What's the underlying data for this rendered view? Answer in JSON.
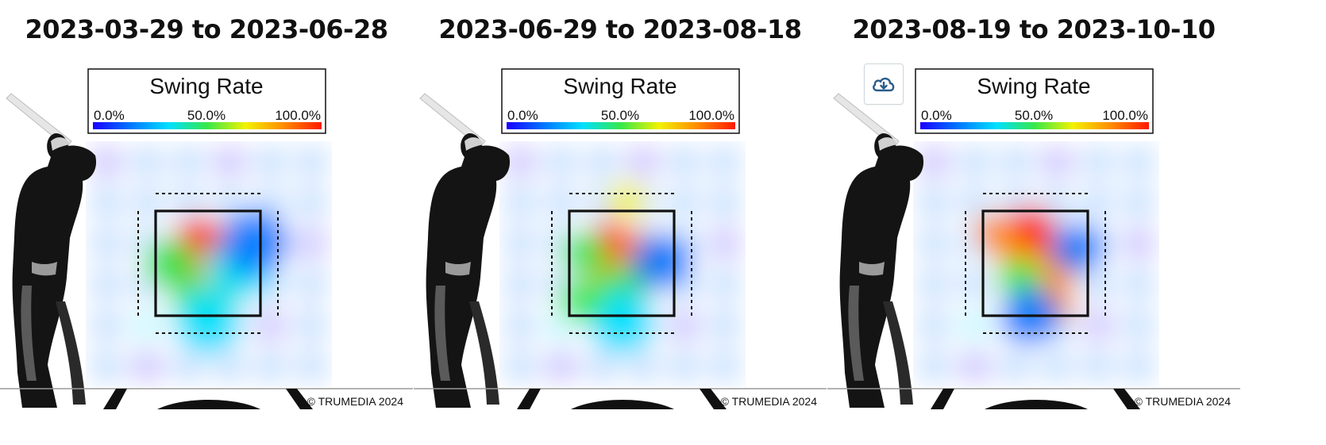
{
  "panels": [
    {
      "title": "2023-03-29 to 2023-06-28"
    },
    {
      "title": "2023-06-29 to 2023-08-18"
    },
    {
      "title": "2023-08-19 to 2023-10-10"
    }
  ],
  "legend": {
    "title": "Swing Rate",
    "tick_min": "0.0%",
    "tick_mid": "50.0%",
    "tick_max": "100.0%",
    "colorscale": [
      "#1a00ff",
      "#0078ff",
      "#00e0ff",
      "#37e84a",
      "#f2f200",
      "#ff8c00",
      "#ff1a00"
    ]
  },
  "copyright": "© TRUMEDIA 2024",
  "download_icon": "cloud-download-icon",
  "chart_data": [
    {
      "type": "heatmap",
      "title": "2023-03-29 to 2023-06-28",
      "metric": "Swing Rate",
      "scale": [
        0,
        100
      ],
      "blobs": [
        {
          "u": 0.5,
          "v": 0.5,
          "s": 0.22,
          "rate": 95
        },
        {
          "u": 0.42,
          "v": 0.3,
          "s": 0.14,
          "rate": 92
        },
        {
          "u": 0.35,
          "v": 0.6,
          "s": 0.12,
          "rate": 97
        },
        {
          "u": 0.62,
          "v": 0.48,
          "s": 0.12,
          "rate": 80
        },
        {
          "u": 0.58,
          "v": 0.78,
          "s": 0.14,
          "rate": 60
        },
        {
          "u": 0.35,
          "v": 0.85,
          "s": 0.12,
          "rate": 55
        },
        {
          "u": 0.8,
          "v": 0.55,
          "s": 0.18,
          "rate": 25
        },
        {
          "u": 0.15,
          "v": 0.5,
          "s": 0.14,
          "rate": 50
        },
        {
          "u": 0.95,
          "v": 0.3,
          "s": 0.18,
          "rate": 12
        },
        {
          "u": 0.5,
          "v": 1.05,
          "s": 0.18,
          "rate": 28
        }
      ]
    },
    {
      "type": "heatmap",
      "title": "2023-06-29 to 2023-08-18",
      "metric": "Swing Rate",
      "scale": [
        0,
        100
      ],
      "blobs": [
        {
          "u": 0.5,
          "v": 0.5,
          "s": 0.2,
          "rate": 75
        },
        {
          "u": 0.4,
          "v": 0.3,
          "s": 0.12,
          "rate": 92
        },
        {
          "u": 0.62,
          "v": 0.35,
          "s": 0.1,
          "rate": 90
        },
        {
          "u": 0.5,
          "v": 0.75,
          "s": 0.14,
          "rate": 55
        },
        {
          "u": 0.15,
          "v": 0.4,
          "s": 0.12,
          "rate": 48
        },
        {
          "u": 0.88,
          "v": 0.48,
          "s": 0.16,
          "rate": 10
        },
        {
          "u": 0.5,
          "v": 1.05,
          "s": 0.18,
          "rate": 28
        },
        {
          "u": 0.12,
          "v": 0.85,
          "s": 0.12,
          "rate": 50
        },
        {
          "u": 0.55,
          "v": -0.1,
          "s": 0.1,
          "rate": 60
        }
      ]
    },
    {
      "type": "heatmap",
      "title": "2023-08-19 to 2023-10-10",
      "metric": "Swing Rate",
      "scale": [
        0,
        100
      ],
      "blobs": [
        {
          "u": 0.5,
          "v": 0.5,
          "s": 0.2,
          "rate": 65
        },
        {
          "u": 0.45,
          "v": 0.2,
          "s": 0.14,
          "rate": 95
        },
        {
          "u": 0.25,
          "v": 0.35,
          "s": 0.1,
          "rate": 85
        },
        {
          "u": 0.7,
          "v": 0.55,
          "s": 0.12,
          "rate": 75
        },
        {
          "u": 0.35,
          "v": 0.65,
          "s": 0.12,
          "rate": 50
        },
        {
          "u": 0.7,
          "v": 0.9,
          "s": 0.1,
          "rate": 80
        },
        {
          "u": 0.45,
          "v": 1.0,
          "s": 0.16,
          "rate": 22
        },
        {
          "u": 0.9,
          "v": 0.35,
          "s": 0.14,
          "rate": 18
        },
        {
          "u": 0.1,
          "v": 0.2,
          "s": 0.1,
          "rate": 80
        }
      ]
    }
  ]
}
